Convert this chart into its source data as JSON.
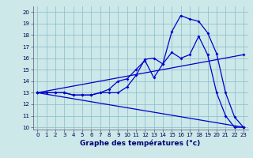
{
  "bg_color": "#cce8e8",
  "line_color": "#0000cc",
  "grid_color": "#88bbcc",
  "xlabel": "Graphe des températures (°c)",
  "xlim": [
    -0.5,
    23.5
  ],
  "ylim": [
    9.8,
    20.5
  ],
  "xticks": [
    0,
    1,
    2,
    3,
    4,
    5,
    6,
    7,
    8,
    9,
    10,
    11,
    12,
    13,
    14,
    15,
    16,
    17,
    18,
    19,
    20,
    21,
    22,
    23
  ],
  "yticks": [
    10,
    11,
    12,
    13,
    14,
    15,
    16,
    17,
    18,
    19,
    20
  ],
  "line1_x": [
    0,
    1,
    2,
    3,
    4,
    5,
    6,
    7,
    8,
    9,
    10,
    11,
    12,
    13,
    14,
    15,
    16,
    17,
    18,
    19,
    20,
    21,
    22,
    23
  ],
  "line1_y": [
    13,
    13,
    13,
    13,
    12.8,
    12.8,
    12.8,
    13,
    13,
    13,
    13.5,
    14.5,
    15.9,
    16,
    15.5,
    16.5,
    16.0,
    16.3,
    17.9,
    16.3,
    13.0,
    11.0,
    10.0,
    10.0
  ],
  "line2_x": [
    0,
    1,
    2,
    3,
    4,
    5,
    6,
    7,
    8,
    9,
    10,
    11,
    12,
    13,
    14,
    15,
    16,
    17,
    18,
    19,
    20,
    21,
    22,
    23
  ],
  "line2_y": [
    13,
    13,
    13,
    13,
    12.8,
    12.8,
    12.8,
    13,
    13.3,
    14,
    14.2,
    15,
    15.8,
    14.3,
    15.5,
    18.3,
    19.7,
    19.4,
    19.2,
    18.2,
    16.4,
    13.0,
    10.9,
    10.0
  ],
  "line3_x": [
    0,
    23
  ],
  "line3_y": [
    13,
    16.3
  ],
  "line4_x": [
    0,
    23
  ],
  "line4_y": [
    13,
    10.0
  ],
  "xlabel_fontsize": 6.5,
  "tick_fontsize": 5.0,
  "linewidth": 0.9,
  "markersize": 2.0
}
